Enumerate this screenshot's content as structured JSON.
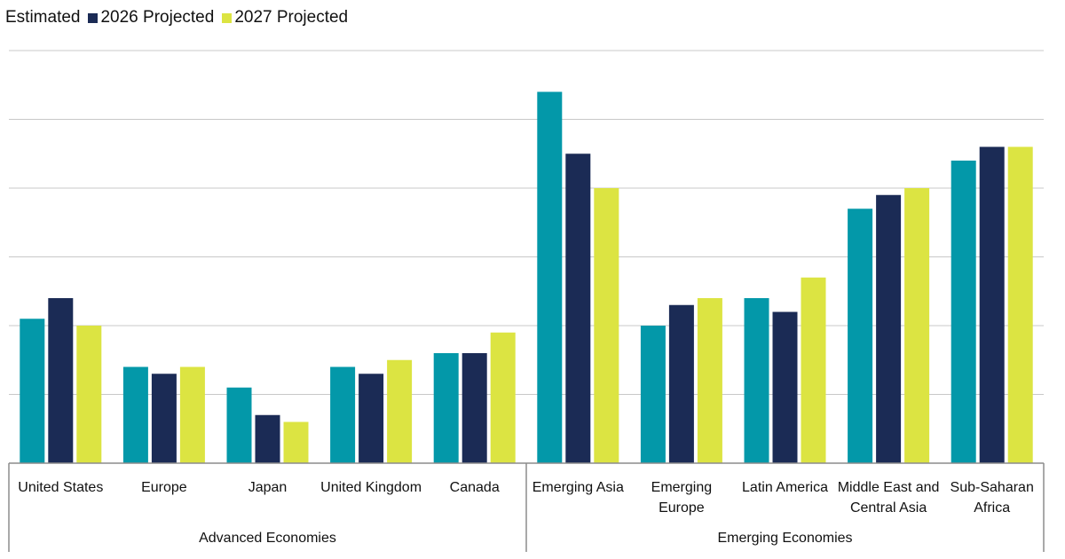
{
  "colors": {
    "estimated": "#0398a9",
    "projected_2026": "#1b2b55",
    "projected_2027": "#dce442",
    "gridline": "#c8c8c8",
    "axis": "#8c8c8c"
  },
  "chart_data": {
    "type": "bar",
    "title": "",
    "xlabel": "",
    "ylabel": "",
    "ylim": [
      0,
      6
    ],
    "gridline_step": 1,
    "grid": true,
    "y_tick_labels_shown": false,
    "legend_position": "top-left",
    "groups": [
      {
        "label": "Advanced Economies",
        "categories": [
          "United States",
          "Europe",
          "Japan",
          "United Kingdom",
          "Canada"
        ]
      },
      {
        "label": "Emerging Economies",
        "categories": [
          "Emerging Asia",
          "Emerging Europe",
          "Latin America",
          "Middle East and Central Asia",
          "Sub-Saharan Africa"
        ]
      }
    ],
    "categories": [
      {
        "label": "United States",
        "lines": [
          "United States"
        ]
      },
      {
        "label": "Europe",
        "lines": [
          "Europe"
        ]
      },
      {
        "label": "Japan",
        "lines": [
          "Japan"
        ]
      },
      {
        "label": "United Kingdom",
        "lines": [
          "United Kingdom"
        ]
      },
      {
        "label": "Canada",
        "lines": [
          "Canada"
        ]
      },
      {
        "label": "Emerging Asia",
        "lines": [
          "Emerging Asia"
        ]
      },
      {
        "label": "Emerging Europe",
        "lines": [
          "Emerging",
          "Europe"
        ]
      },
      {
        "label": "Latin America",
        "lines": [
          "Latin America"
        ]
      },
      {
        "label": "Middle East and Central Asia",
        "lines": [
          "Middle East and",
          "Central Asia"
        ]
      },
      {
        "label": "Sub-Saharan Africa",
        "lines": [
          "Sub-Saharan",
          "Africa"
        ]
      }
    ],
    "series": [
      {
        "name": "Estimated",
        "color_key": "estimated",
        "values": [
          2.1,
          1.4,
          1.1,
          1.4,
          1.6,
          5.4,
          2.0,
          2.4,
          3.7,
          4.4
        ]
      },
      {
        "name": "2026 Projected",
        "color_key": "projected_2026",
        "values": [
          2.4,
          1.3,
          0.7,
          1.3,
          1.6,
          4.5,
          2.3,
          2.2,
          3.9,
          4.6
        ]
      },
      {
        "name": "2027 Projected",
        "color_key": "projected_2027",
        "values": [
          2.0,
          1.4,
          0.6,
          1.5,
          1.9,
          4.0,
          2.4,
          2.7,
          4.0,
          4.6
        ]
      }
    ]
  }
}
